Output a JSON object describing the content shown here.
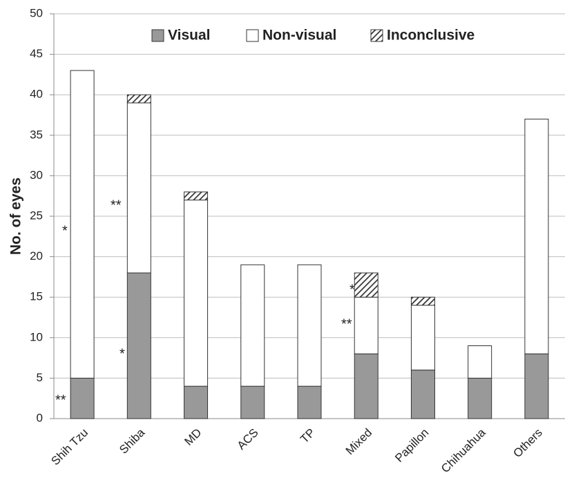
{
  "chart_data": {
    "type": "stacked-bar",
    "y_label": "No. of eyes",
    "categories": [
      "Shih Tzu",
      "Shiba",
      "MD",
      "ACS",
      "TP",
      "Mixed",
      "Papillon",
      "Chihuahua",
      "Others"
    ],
    "series": [
      {
        "name": "Visual",
        "color": "#999999",
        "values": [
          5,
          18,
          4,
          4,
          4,
          8,
          6,
          5,
          8
        ]
      },
      {
        "name": "Non-visual",
        "color": "#ffffff",
        "values": [
          38,
          21,
          23,
          15,
          15,
          7,
          8,
          4,
          29
        ]
      },
      {
        "name": "Inconclusive",
        "color": "#333333",
        "pattern": "hatch",
        "values": [
          0,
          1,
          1,
          0,
          0,
          3,
          1,
          0,
          0
        ]
      }
    ],
    "ylim": [
      0,
      50
    ],
    "yticks": [
      0,
      5,
      10,
      15,
      20,
      25,
      30,
      35,
      40,
      45,
      50
    ],
    "grid": true,
    "legend": "top",
    "annotations": [
      {
        "text": "**"
      },
      {
        "text": "*"
      },
      {
        "text": "**"
      },
      {
        "text": "*"
      },
      {
        "text": "*"
      },
      {
        "text": "**"
      }
    ]
  }
}
